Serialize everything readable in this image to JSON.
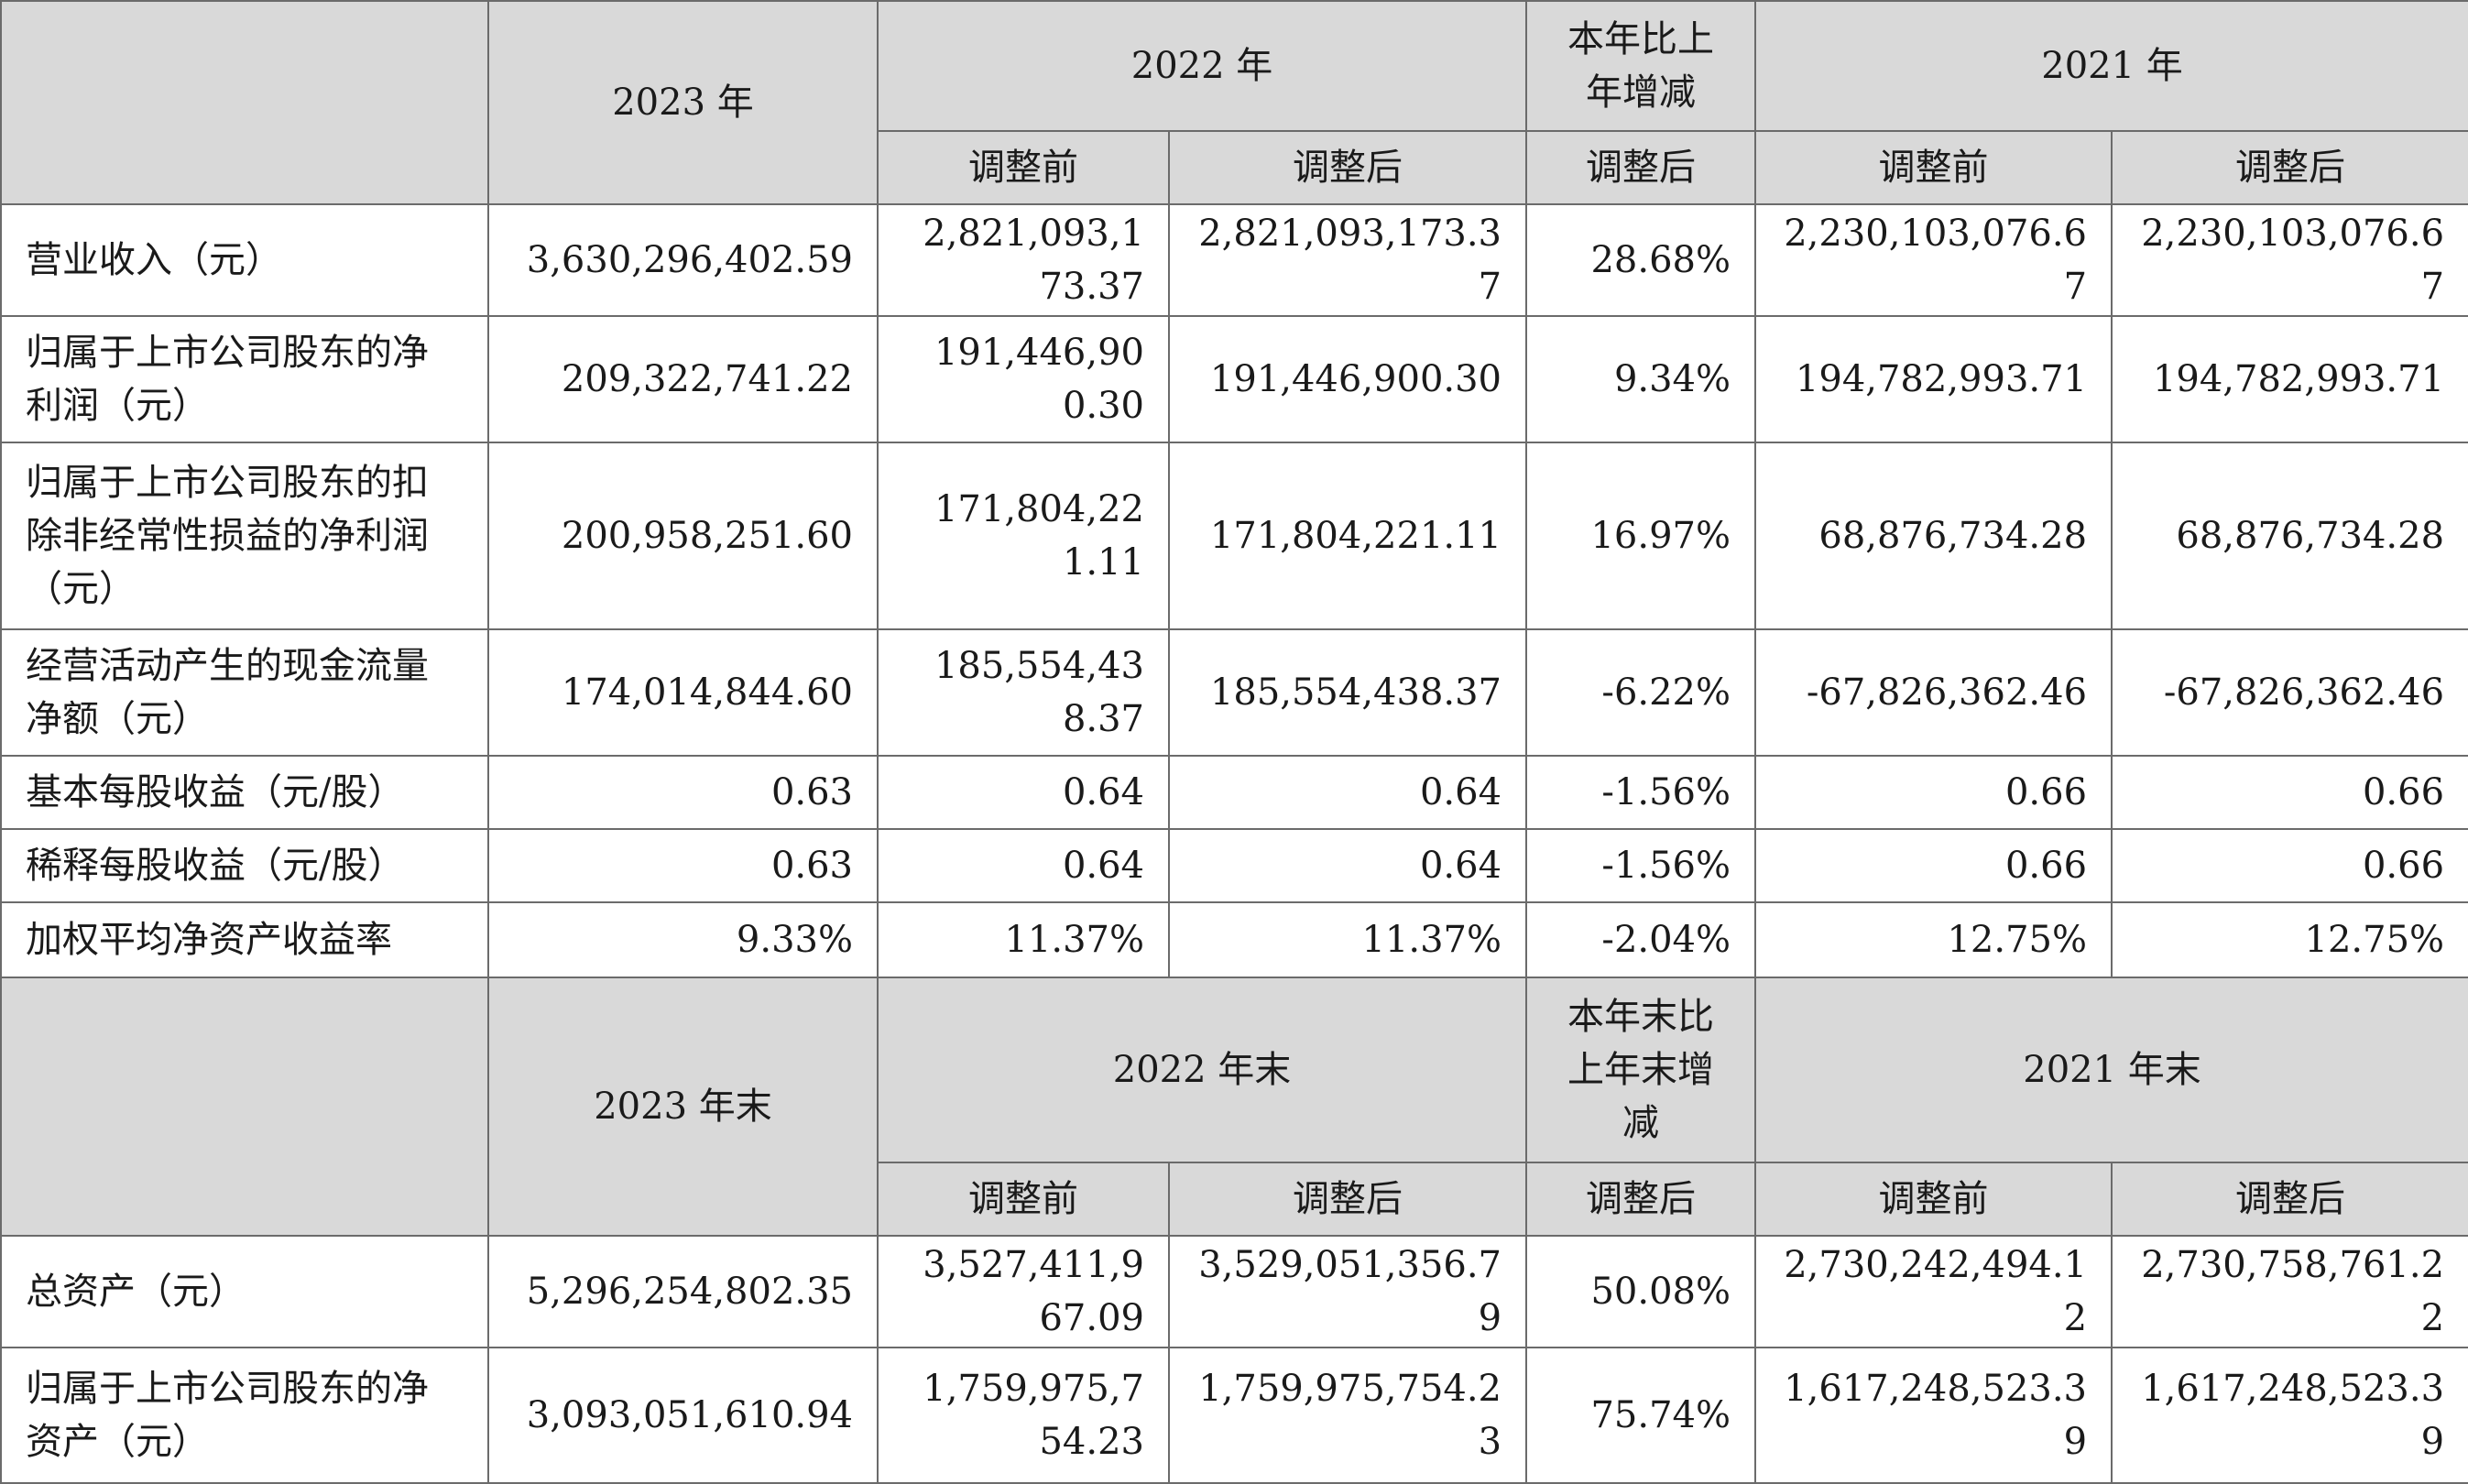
{
  "header1": {
    "y2023": "2023 年",
    "y2022": "2022 年",
    "change": "本年比上年增减",
    "y2021": "2021 年",
    "before": "调整前",
    "after": "调整后"
  },
  "rows1": [
    {
      "label": "营业收入（元）",
      "v2023": "3,630,296,402.59",
      "v2022_before": "2,821,093,173.37",
      "v2022_after": "2,821,093,173.37",
      "change": "28.68%",
      "v2021_before": "2,230,103,076.67",
      "v2021_after": "2,230,103,076.67"
    },
    {
      "label": "归属于上市公司股东的净利润（元）",
      "v2023": "209,322,741.22",
      "v2022_before": "191,446,900.30",
      "v2022_after": "191,446,900.30",
      "change": "9.34%",
      "v2021_before": "194,782,993.71",
      "v2021_after": "194,782,993.71"
    },
    {
      "label": "归属于上市公司股东的扣除非经常性损益的净利润（元）",
      "v2023": "200,958,251.60",
      "v2022_before": "171,804,221.11",
      "v2022_after": "171,804,221.11",
      "change": "16.97%",
      "v2021_before": "68,876,734.28",
      "v2021_after": "68,876,734.28"
    },
    {
      "label": "经营活动产生的现金流量净额（元）",
      "v2023": "174,014,844.60",
      "v2022_before": "185,554,438.37",
      "v2022_after": "185,554,438.37",
      "change": "-6.22%",
      "v2021_before": "-67,826,362.46",
      "v2021_after": "-67,826,362.46"
    },
    {
      "label": "基本每股收益（元/股）",
      "v2023": "0.63",
      "v2022_before": "0.64",
      "v2022_after": "0.64",
      "change": "-1.56%",
      "v2021_before": "0.66",
      "v2021_after": "0.66"
    },
    {
      "label": "稀释每股收益（元/股）",
      "v2023": "0.63",
      "v2022_before": "0.64",
      "v2022_after": "0.64",
      "change": "-1.56%",
      "v2021_before": "0.66",
      "v2021_after": "0.66"
    },
    {
      "label": "加权平均净资产收益率",
      "v2023": "9.33%",
      "v2022_before": "11.37%",
      "v2022_after": "11.37%",
      "change": "-2.04%",
      "v2021_before": "12.75%",
      "v2021_after": "12.75%"
    }
  ],
  "header2": {
    "y2023": "2023 年末",
    "y2022": "2022 年末",
    "change": "本年末比上年末增减",
    "y2021": "2021 年末",
    "before": "调整前",
    "after": "调整后"
  },
  "rows2": [
    {
      "label": "总资产（元）",
      "v2023": "5,296,254,802.35",
      "v2022_before": "3,527,411,967.09",
      "v2022_after": "3,529,051,356.79",
      "change": "50.08%",
      "v2021_before": "2,730,242,494.12",
      "v2021_after": "2,730,758,761.22"
    },
    {
      "label": "归属于上市公司股东的净资产（元）",
      "v2023": "3,093,051,610.94",
      "v2022_before": "1,759,975,754.23",
      "v2022_after": "1,759,975,754.23",
      "change": "75.74%",
      "v2021_before": "1,617,248,523.39",
      "v2021_after": "1,617,248,523.39"
    }
  ]
}
